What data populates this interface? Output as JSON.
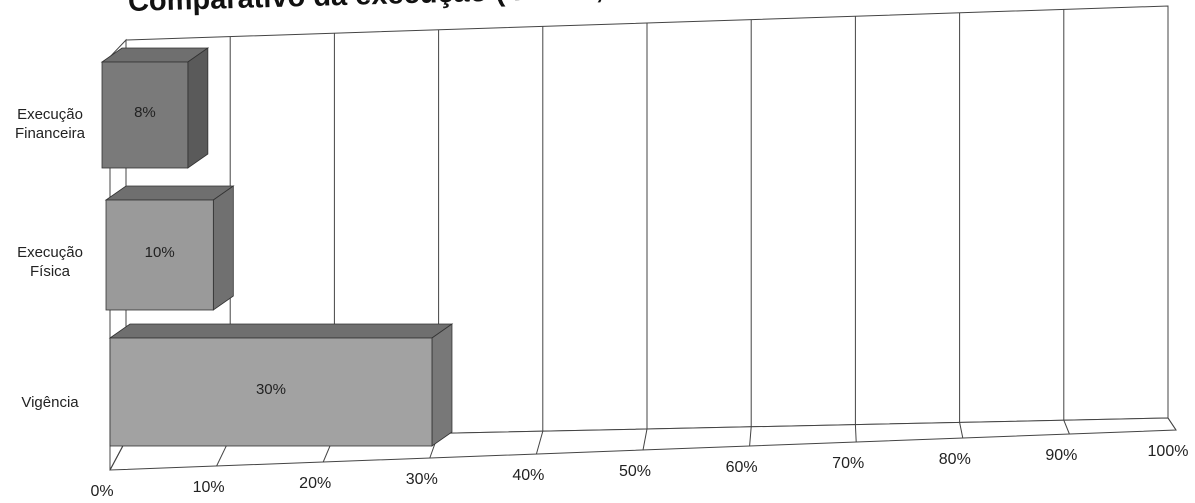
{
  "chart_data": {
    "type": "bar",
    "orientation": "horizontal",
    "three_d": true,
    "title": "Comparativo da execução ( Física, Financeira e Vigência)",
    "categories": [
      "Execução Financeira",
      "Execução Física",
      "Vigência"
    ],
    "category_lines": [
      [
        "Execução",
        "Financeira"
      ],
      [
        "Execução",
        "Física"
      ],
      [
        "Vigência"
      ]
    ],
    "values": [
      8,
      10,
      30
    ],
    "value_labels": [
      "8%",
      "10%",
      "30%"
    ],
    "xlim": [
      0,
      100
    ],
    "x_ticks": [
      "0%",
      "10%",
      "20%",
      "30%",
      "40%",
      "50%",
      "60%",
      "70%",
      "80%",
      "90%",
      "100%"
    ],
    "grid": true,
    "colors": {
      "bar_top": "#6f6f6f",
      "bar_front": [
        "#7a7a7a",
        "#9a9a9a",
        "#a2a2a2"
      ],
      "bar_side": [
        "#5a5a5a",
        "#707070",
        "#787878"
      ],
      "grid": "#444444"
    }
  }
}
